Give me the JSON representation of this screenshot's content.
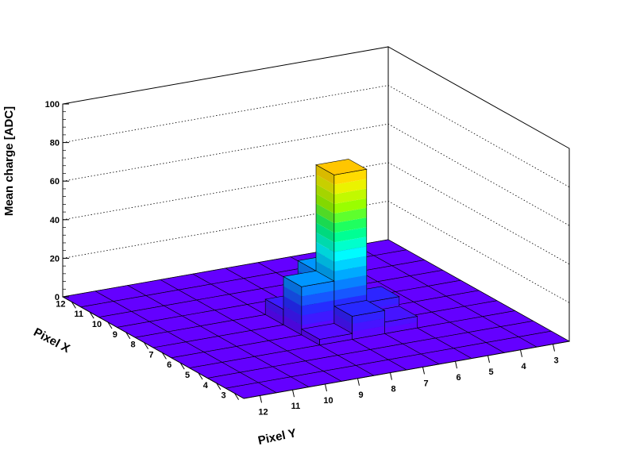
{
  "chart_data": {
    "type": "lego3d",
    "title": "",
    "xlabel": "Pixel X",
    "ylabel": "Pixel Y",
    "zlabel": "Mean charge [ADC]",
    "x_ticks": [
      "3",
      "4",
      "5",
      "6",
      "7",
      "8",
      "9",
      "10",
      "11",
      "12"
    ],
    "y_ticks": [
      "3",
      "4",
      "5",
      "6",
      "7",
      "8",
      "9",
      "10",
      "11",
      "12"
    ],
    "z_ticks": [
      "0",
      "20",
      "40",
      "60",
      "80",
      "100"
    ],
    "xlim": [
      2.5,
      12.5
    ],
    "ylim": [
      2.5,
      12.5
    ],
    "zlim": [
      0,
      100
    ],
    "grid": true,
    "colormap": "rainbow",
    "bins": [
      {
        "x": 7,
        "y": 7,
        "z": 80
      },
      {
        "x": 8,
        "y": 7,
        "z": 25
      },
      {
        "x": 7,
        "y": 8,
        "z": 25
      },
      {
        "x": 6,
        "y": 7,
        "z": 12
      },
      {
        "x": 7,
        "y": 6,
        "z": 11
      },
      {
        "x": 8,
        "y": 8,
        "z": 8
      },
      {
        "x": 6,
        "y": 6,
        "z": 6
      },
      {
        "x": 8,
        "y": 6,
        "z": 4
      },
      {
        "x": 6,
        "y": 8,
        "z": 3
      }
    ]
  }
}
